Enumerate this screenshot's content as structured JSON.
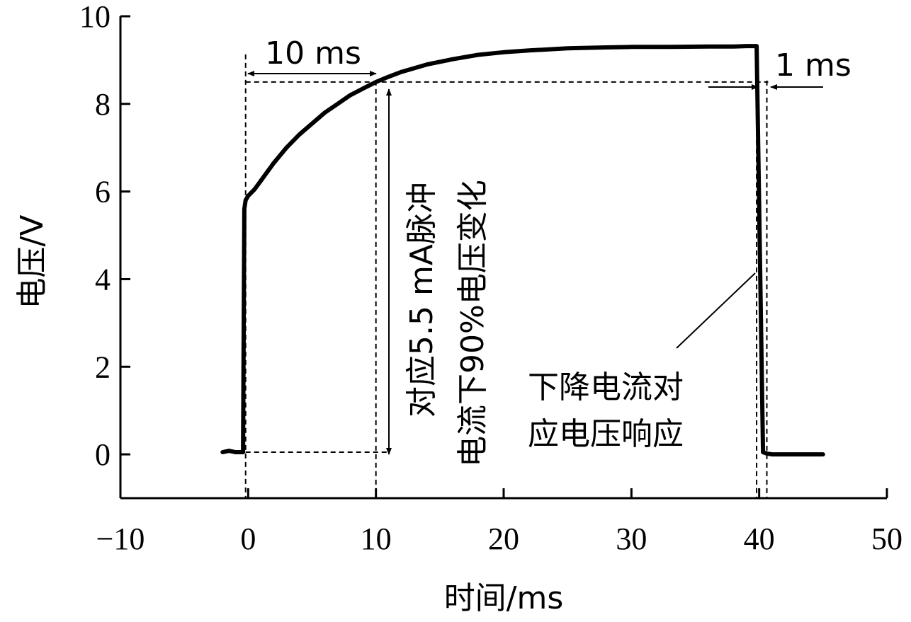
{
  "chart_data": {
    "type": "line",
    "title": "",
    "xlabel": "时间/ms",
    "ylabel": "电压/V",
    "xlim": [
      -10,
      50
    ],
    "ylim": [
      -1,
      10
    ],
    "x_ticks": [
      -10,
      0,
      10,
      20,
      30,
      40,
      50
    ],
    "x_tick_labels": [
      "−10",
      "0",
      "10",
      "20",
      "30",
      "40",
      "50"
    ],
    "y_ticks": [
      0,
      2,
      4,
      6,
      8,
      10
    ],
    "y_tick_labels": [
      "0",
      "2",
      "4",
      "6",
      "8",
      "10"
    ],
    "grid": false,
    "series": [
      {
        "x": [
          -2.0,
          -1.5,
          -1.0,
          -0.7,
          -0.4,
          -0.3,
          -0.2,
          0.0,
          0.5,
          1,
          2,
          3,
          4,
          5,
          6,
          7,
          8,
          9,
          10,
          11,
          12,
          14,
          16,
          18,
          20,
          22,
          25,
          28,
          30,
          33,
          36,
          38,
          39,
          39.8,
          40.3,
          40.6,
          41,
          42,
          43,
          44,
          45
        ],
        "y": [
          0.05,
          0.08,
          0.05,
          0.05,
          0.05,
          5.6,
          5.8,
          5.9,
          6.05,
          6.25,
          6.65,
          7.0,
          7.3,
          7.55,
          7.8,
          8.0,
          8.2,
          8.35,
          8.5,
          8.62,
          8.73,
          8.9,
          9.02,
          9.12,
          9.18,
          9.22,
          9.27,
          9.29,
          9.3,
          9.3,
          9.31,
          9.31,
          9.32,
          9.32,
          0.05,
          0.02,
          0.0,
          0.0,
          0.0,
          0.0,
          0.0
        ]
      }
    ],
    "reference_lines": {
      "vertical_dashed_x": [
        -0.2,
        10,
        39.8,
        40.6
      ],
      "horizontal_dashed_y": [
        0.05,
        8.5
      ]
    },
    "annotations": [
      {
        "text": "10 ms",
        "arrow_from_x": -0.2,
        "arrow_to_x": 10,
        "y": 9.0
      },
      {
        "text": "1 ms",
        "arrow_from_x": 39.8,
        "arrow_to_x": 40.6,
        "y": 8.5
      },
      {
        "text": "对应5.5 mA脉冲",
        "note": "vertical double arrow from 0 V to 8.5 V at 11 ms"
      },
      {
        "text": "电流下90%电压变化"
      },
      {
        "text": "下降电流对"
      },
      {
        "text": "应电压响应"
      }
    ]
  }
}
